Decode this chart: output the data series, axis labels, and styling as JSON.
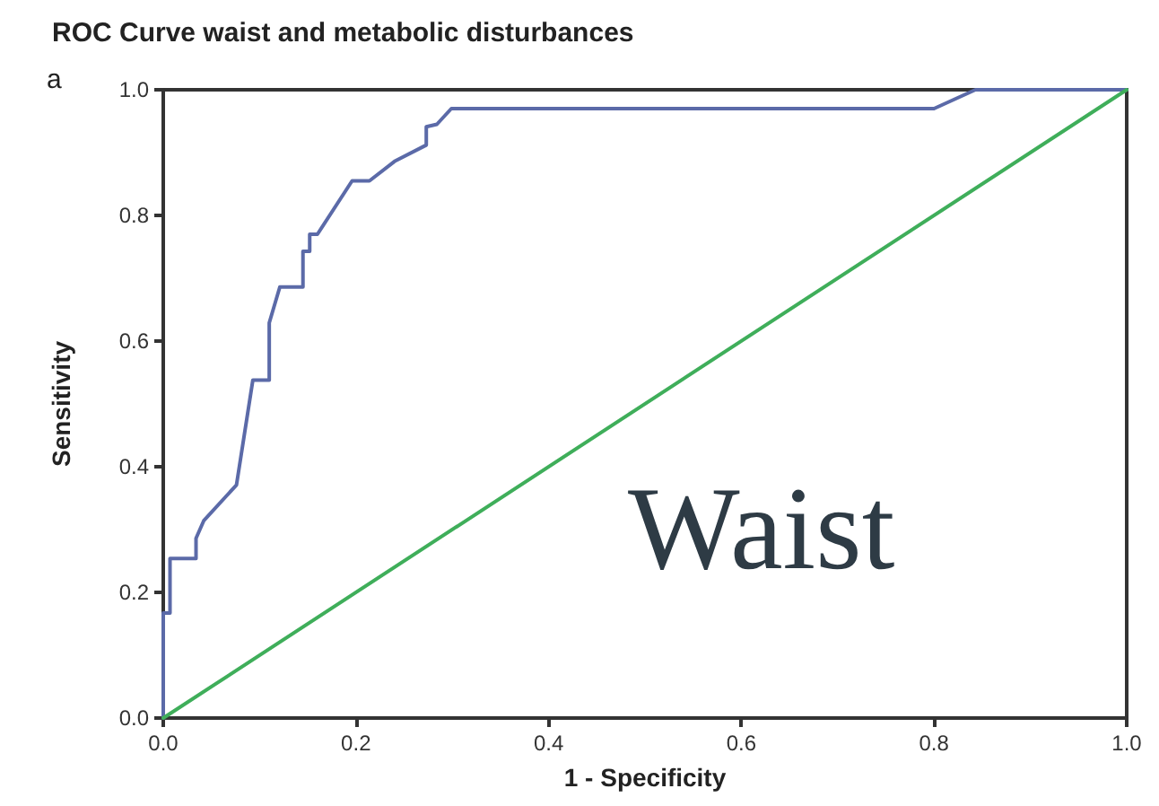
{
  "chart_data": {
    "type": "line",
    "title": "ROC Curve waist and metabolic disturbances",
    "xlabel": "1 - Specificity",
    "ylabel": "Sensitivity",
    "annotations": [
      "a",
      "Waist"
    ],
    "series": [
      {
        "color": "#5b6aa8",
        "x": [
          0,
          0,
          0.007,
          0.007,
          0.034,
          0.034,
          0.042,
          0.076,
          0.093,
          0.11,
          0.11,
          0.121,
          0.145,
          0.145,
          0.152,
          0.152,
          0.16,
          0.196,
          0.214,
          0.24,
          0.273,
          0.273,
          0.284,
          0.299,
          0.8,
          0.843,
          1
        ],
        "values": [
          0,
          0.167,
          0.167,
          0.254,
          0.254,
          0.286,
          0.314,
          0.371,
          0.538,
          0.538,
          0.629,
          0.686,
          0.686,
          0.743,
          0.743,
          0.77,
          0.77,
          0.855,
          0.855,
          0.886,
          0.912,
          0.941,
          0.945,
          0.97,
          0.97,
          1,
          1
        ]
      },
      {
        "color": "#3fae5a",
        "x": [
          0,
          1
        ],
        "values": [
          0,
          1
        ]
      }
    ],
    "xlim": [
      0,
      1
    ],
    "ylim": [
      0,
      1
    ],
    "xticks": [
      {
        "value": 0,
        "label": "0.0"
      },
      {
        "value": 0.2,
        "label": "0.2"
      },
      {
        "value": 0.4,
        "label": "0.4"
      },
      {
        "value": 0.6,
        "label": "0.6"
      },
      {
        "value": 0.8,
        "label": "0.8"
      },
      {
        "value": 1,
        "label": "1.0"
      }
    ],
    "yticks": [
      {
        "value": 0,
        "label": "0.0"
      },
      {
        "value": 0.2,
        "label": "0.2"
      },
      {
        "value": 0.4,
        "label": "0.4"
      },
      {
        "value": 0.6,
        "label": "0.6"
      },
      {
        "value": 0.8,
        "label": "0.8"
      },
      {
        "value": 1,
        "label": "1.0"
      }
    ],
    "grid": false,
    "marker": "none",
    "line_style": "solid"
  }
}
